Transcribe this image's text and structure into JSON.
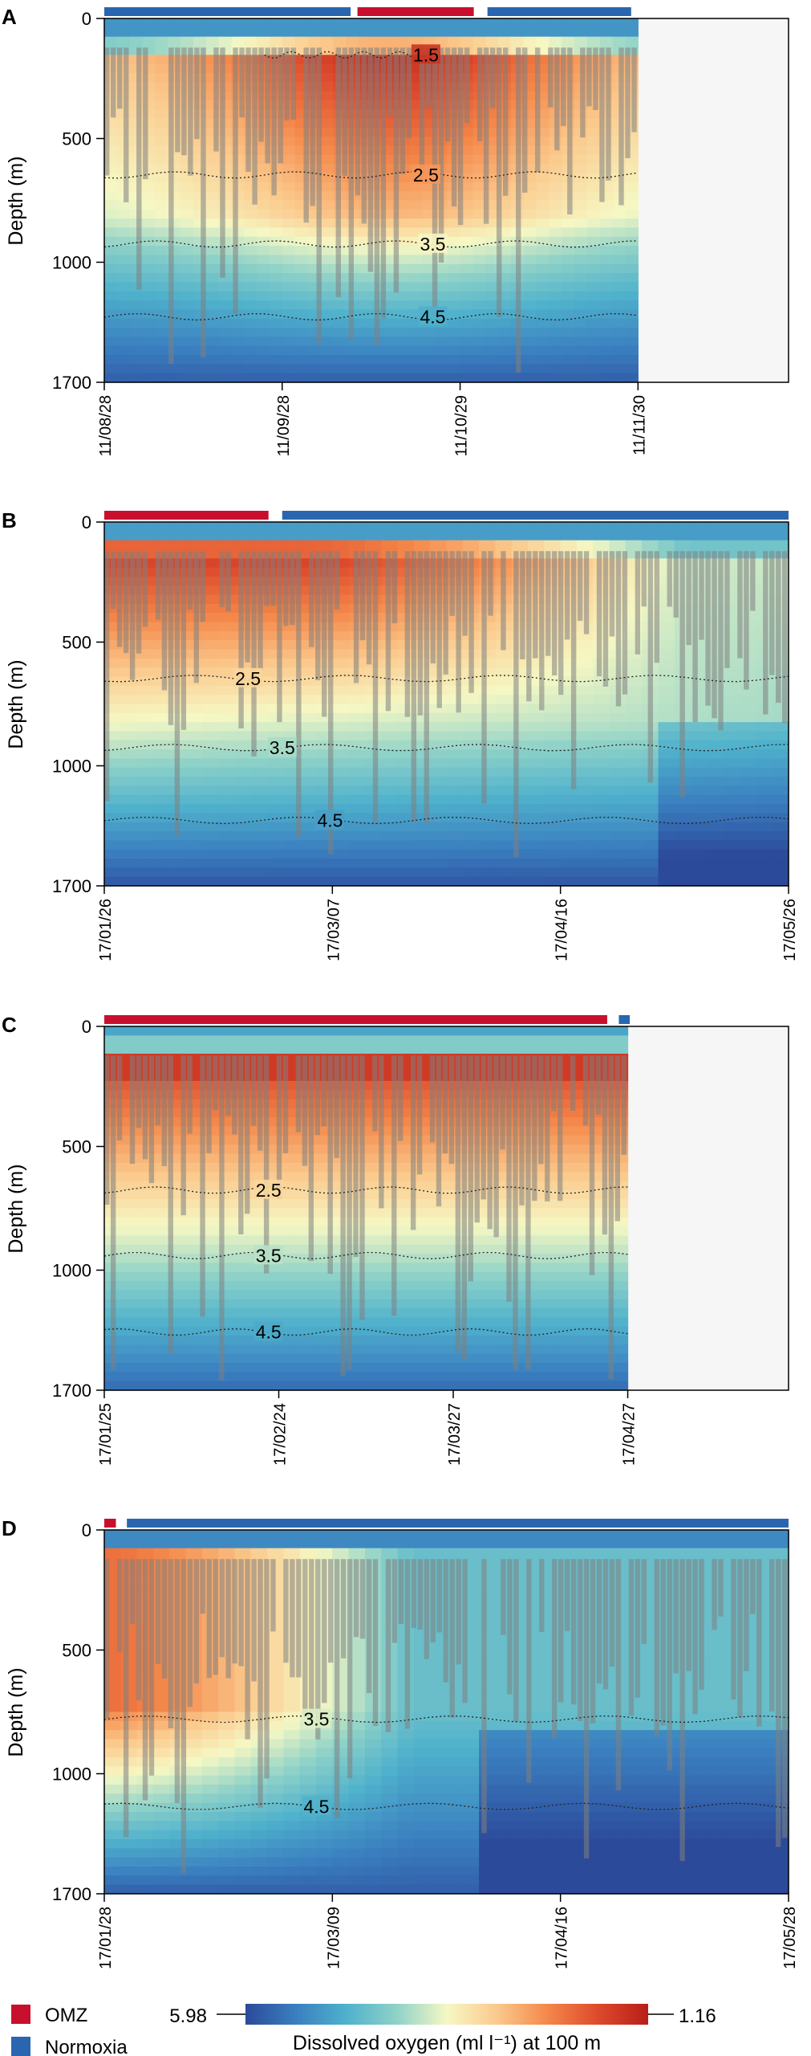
{
  "colors": {
    "omz": "#c8102e",
    "normoxia": "#2a66b0",
    "nodata": "#f6f6f6",
    "profile": "#808080",
    "colorscale": [
      "#2c4a9a",
      "#3a7fc0",
      "#4fb1cc",
      "#8fd2c8",
      "#f6f8c4",
      "#fbc98c",
      "#f4884a",
      "#dd4a2c",
      "#b81e18"
    ]
  },
  "legend": {
    "omz_label": "OMZ",
    "normoxia_label": "Normoxia",
    "scale_min_label": "5.98",
    "scale_max_label": "1.16",
    "title": "Dissolved oxygen (ml l⁻¹) at 100 m"
  },
  "chart_data": [
    {
      "type": "heatmap",
      "panel": "A",
      "ylabel": "Depth (m)",
      "yticks": [
        "0",
        "500",
        "1000",
        "1700"
      ],
      "xticks": [
        "11/08/28",
        "11/09/28",
        "11/10/29",
        "11/11/30"
      ],
      "ylim": [
        1700,
        0
      ],
      "data_extent_fraction": 0.78,
      "state_bars": [
        {
          "state": "normoxia",
          "start": 0.0,
          "end": 0.36
        },
        {
          "state": "omz",
          "start": 0.37,
          "end": 0.54
        },
        {
          "state": "normoxia",
          "start": 0.56,
          "end": 0.77
        }
      ],
      "contours": [
        {
          "label": "1.5",
          "label_pos": 0.47
        },
        {
          "label": "2.5",
          "label_pos": 0.47
        },
        {
          "label": "3.5",
          "label_pos": 0.48
        },
        {
          "label": "4.5",
          "label_pos": 0.48
        }
      ]
    },
    {
      "type": "heatmap",
      "panel": "B",
      "ylabel": "Depth (m)",
      "yticks": [
        "0",
        "500",
        "1000",
        "1700"
      ],
      "xticks": [
        "17/01/26",
        "17/03/07",
        "17/04/16",
        "17/05/26"
      ],
      "ylim": [
        1700,
        0
      ],
      "data_extent_fraction": 1.0,
      "state_bars": [
        {
          "state": "omz",
          "start": 0.0,
          "end": 0.24
        },
        {
          "state": "normoxia",
          "start": 0.26,
          "end": 1.0
        }
      ],
      "contours": [
        {
          "label": "2.5",
          "label_pos": 0.21
        },
        {
          "label": "3.5",
          "label_pos": 0.26
        },
        {
          "label": "4.5",
          "label_pos": 0.33
        }
      ]
    },
    {
      "type": "heatmap",
      "panel": "C",
      "ylabel": "Depth (m)",
      "yticks": [
        "0",
        "500",
        "1000",
        "1700"
      ],
      "xticks": [
        "17/01/25",
        "17/02/24",
        "17/03/27",
        "17/04/27"
      ],
      "ylim": [
        1700,
        0
      ],
      "data_extent_fraction": 0.765,
      "state_bars": [
        {
          "state": "omz",
          "start": 0.0,
          "end": 0.735
        },
        {
          "state": "normoxia",
          "start": 0.752,
          "end": 0.768
        }
      ],
      "contours": [
        {
          "label": "2.5",
          "label_pos": 0.24
        },
        {
          "label": "3.5",
          "label_pos": 0.24
        },
        {
          "label": "4.5",
          "label_pos": 0.24
        }
      ]
    },
    {
      "type": "heatmap",
      "panel": "D",
      "ylabel": "Depth (m)",
      "yticks": [
        "0",
        "500",
        "1000",
        "1700"
      ],
      "xticks": [
        "17/01/28",
        "17/03/09",
        "17/04/16",
        "17/05/28"
      ],
      "ylim": [
        1700,
        0
      ],
      "data_extent_fraction": 1.0,
      "state_bars": [
        {
          "state": "omz",
          "start": 0.0,
          "end": 0.017
        },
        {
          "state": "normoxia",
          "start": 0.033,
          "end": 1.0
        }
      ],
      "contours": [
        {
          "label": "3.5",
          "label_pos": 0.31
        },
        {
          "label": "4.5",
          "label_pos": 0.31
        }
      ]
    }
  ]
}
